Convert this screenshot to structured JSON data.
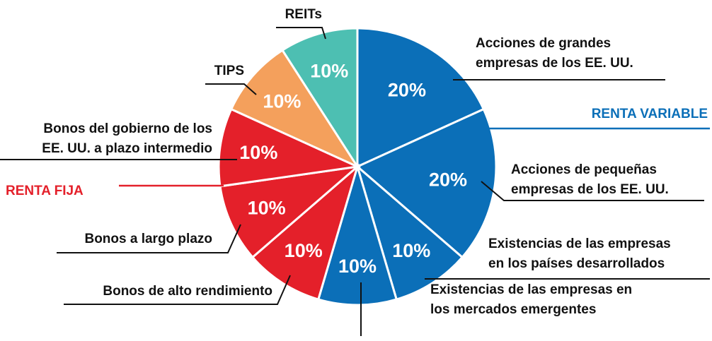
{
  "chart_data": {
    "type": "pie",
    "categories": [
      [
        "Acciones de grandes",
        "empresas de los EE. UU."
      ],
      [
        "Acciones de pequeñas",
        "empresas de los EE. UU."
      ],
      [
        "Existencias de las empresas",
        "en los países desarrollados"
      ],
      [
        "Existencias de las empresas en",
        "los mercados emergentes"
      ],
      [
        "Bonos de alto rendimiento"
      ],
      [
        "Bonos a largo plazo"
      ],
      [
        "Bonos del gobierno de los",
        "EE. UU. a plazo intermedio"
      ],
      [
        "TIPS"
      ],
      [
        "REITs"
      ]
    ],
    "values": [
      20,
      20,
      10,
      10,
      10,
      10,
      10,
      10,
      10
    ],
    "value_labels": [
      "20%",
      "20%",
      "10%",
      "10%",
      "10%",
      "10%",
      "10%",
      "10%",
      "10%"
    ],
    "colors": [
      "#0b6fb8",
      "#0b6fb8",
      "#0b6fb8",
      "#0b6fb8",
      "#e4202a",
      "#e4202a",
      "#e4202a",
      "#f4a05c",
      "#4dbfb2"
    ],
    "groups": [
      {
        "name": "RENTA VARIABLE",
        "color": "#0b6fb8"
      },
      {
        "name": "RENTA FIJA",
        "color": "#e4202a"
      }
    ]
  }
}
